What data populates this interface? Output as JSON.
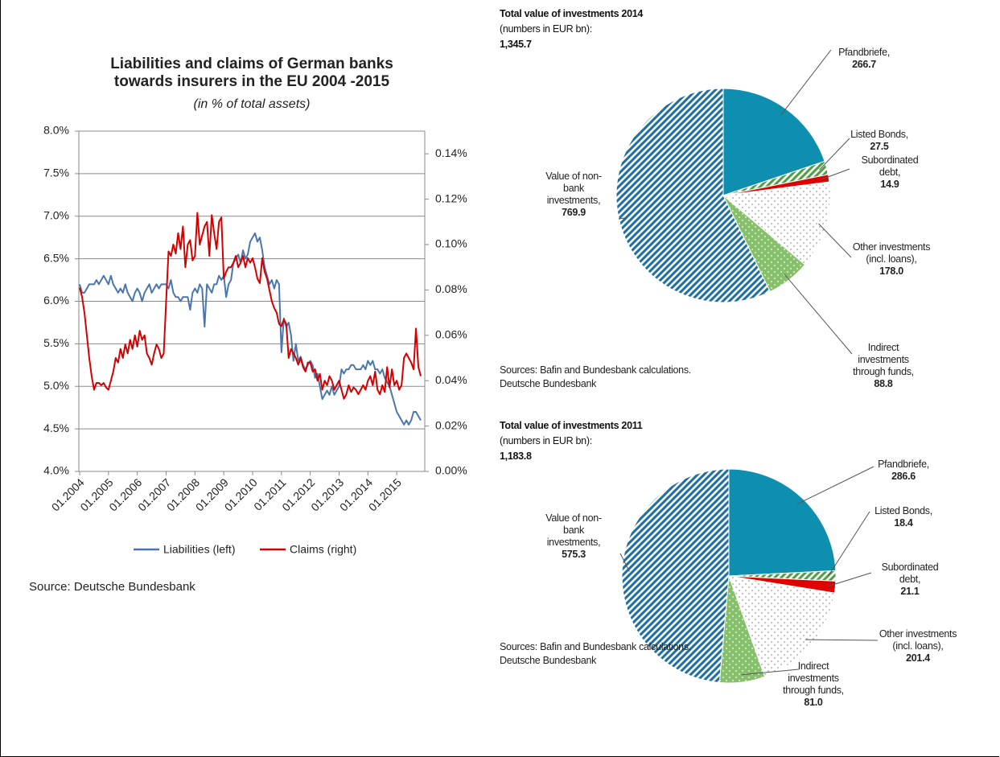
{
  "chart_data": [
    {
      "type": "line",
      "title": [
        "Liabilities and claims of German banks",
        "towards insurers in the EU 2004 -2015"
      ],
      "subtitle": "(in % of total assets)",
      "source": "Source: Deutsche Bundesbank",
      "categories": [
        "01.2004",
        null,
        null,
        null,
        null,
        null,
        null,
        null,
        null,
        null,
        null,
        null,
        "01.2005",
        null,
        null,
        null,
        null,
        null,
        null,
        null,
        null,
        null,
        null,
        null,
        "01.2006",
        null,
        null,
        null,
        null,
        null,
        null,
        null,
        null,
        null,
        null,
        null,
        "01.2007",
        null,
        null,
        null,
        null,
        null,
        null,
        null,
        null,
        null,
        null,
        null,
        "01.2008",
        null,
        null,
        null,
        null,
        null,
        null,
        null,
        null,
        null,
        null,
        null,
        "01.2009",
        null,
        null,
        null,
        null,
        null,
        null,
        null,
        null,
        null,
        null,
        null,
        "01.2010",
        null,
        null,
        null,
        null,
        null,
        null,
        null,
        null,
        null,
        null,
        null,
        "01.2011",
        null,
        null,
        null,
        null,
        null,
        null,
        null,
        null,
        null,
        null,
        null,
        "01.2012",
        null,
        null,
        null,
        null,
        null,
        null,
        null,
        null,
        null,
        null,
        null,
        "01.2013",
        null,
        null,
        null,
        null,
        null,
        null,
        null,
        null,
        null,
        null,
        null,
        "01.2014",
        null,
        null,
        null,
        null,
        null,
        null,
        null,
        null,
        null,
        null,
        null,
        "01.2015",
        null,
        null,
        null,
        null,
        null,
        null,
        null,
        null,
        null,
        null
      ],
      "series": [
        {
          "name": "Liabilities (left)",
          "color": "#4a76b0",
          "axis": "y",
          "values": [
            6.2,
            6.1,
            6.1,
            6.15,
            6.2,
            6.2,
            6.2,
            6.25,
            6.2,
            6.25,
            6.3,
            6.25,
            6.2,
            6.3,
            6.2,
            6.15,
            6.1,
            6.15,
            6.1,
            6.2,
            6.1,
            6.05,
            6.0,
            6.1,
            6.15,
            6.1,
            6.0,
            6.1,
            6.15,
            6.2,
            6.1,
            6.15,
            6.2,
            6.15,
            6.2,
            6.2,
            6.2,
            6.15,
            6.25,
            6.1,
            6.05,
            6.05,
            6.0,
            6.05,
            6.05,
            6.05,
            5.9,
            6.1,
            6.15,
            6.1,
            6.2,
            6.15,
            5.7,
            6.2,
            6.15,
            6.1,
            6.2,
            6.2,
            6.3,
            6.25,
            6.3,
            6.05,
            6.2,
            6.25,
            6.45,
            6.5,
            6.55,
            6.45,
            6.6,
            6.5,
            6.55,
            6.7,
            6.75,
            6.8,
            6.7,
            6.75,
            6.6,
            6.4,
            6.3,
            6.2,
            6.25,
            6.15,
            6.25,
            6.2,
            5.4,
            5.8,
            5.7,
            5.75,
            5.6,
            5.3,
            5.5,
            5.3,
            5.35,
            5.25,
            5.2,
            5.25,
            5.3,
            5.25,
            5.1,
            5.15,
            5.0,
            4.85,
            4.9,
            4.95,
            4.9,
            5.0,
            4.9,
            4.95,
            5.0,
            5.2,
            5.15,
            5.2,
            5.2,
            5.25,
            5.25,
            5.2,
            5.2,
            5.2,
            5.25,
            5.2,
            5.3,
            5.25,
            5.3,
            5.2,
            5.2,
            5.15,
            5.2,
            5.1,
            5.05,
            5.0,
            4.9,
            4.8,
            4.7,
            4.65,
            4.6,
            4.55,
            4.6,
            4.55,
            4.6,
            4.7,
            4.7,
            4.65,
            4.6
          ]
        },
        {
          "name": "Claims (right)",
          "color": "#d40000",
          "axis": "y2",
          "values": [
            0.081,
            0.077,
            0.07,
            0.06,
            0.05,
            0.042,
            0.036,
            0.039,
            0.039,
            0.038,
            0.039,
            0.037,
            0.036,
            0.04,
            0.044,
            0.05,
            0.048,
            0.054,
            0.05,
            0.056,
            0.052,
            0.058,
            0.054,
            0.06,
            0.055,
            0.062,
            0.058,
            0.06,
            0.052,
            0.05,
            0.047,
            0.052,
            0.056,
            0.054,
            0.05,
            0.052,
            0.075,
            0.097,
            0.095,
            0.1,
            0.096,
            0.105,
            0.098,
            0.108,
            0.09,
            0.1,
            0.102,
            0.093,
            0.095,
            0.114,
            0.1,
            0.104,
            0.108,
            0.11,
            0.095,
            0.113,
            0.105,
            0.098,
            0.11,
            0.112,
            0.085,
            0.088,
            0.09,
            0.09,
            0.092,
            0.095,
            0.09,
            0.092,
            0.095,
            0.09,
            0.094,
            0.092,
            0.094,
            0.09,
            0.085,
            0.083,
            0.094,
            0.088,
            0.085,
            0.08,
            0.075,
            0.072,
            0.07,
            0.065,
            0.064,
            0.067,
            0.065,
            0.05,
            0.054,
            0.052,
            0.05,
            0.047,
            0.05,
            0.046,
            0.044,
            0.048,
            0.048,
            0.044,
            0.045,
            0.04,
            0.043,
            0.036,
            0.04,
            0.038,
            0.042,
            0.04,
            0.036,
            0.038,
            0.04,
            0.036,
            0.032,
            0.034,
            0.038,
            0.035,
            0.037,
            0.036,
            0.034,
            0.036,
            0.038,
            0.036,
            0.04,
            0.042,
            0.038,
            0.044,
            0.036,
            0.034,
            0.038,
            0.035,
            0.046,
            0.037,
            0.045,
            0.038,
            0.04,
            0.036,
            0.038,
            0.05,
            0.052,
            0.05,
            0.048,
            0.045,
            0.063,
            0.046,
            0.042
          ]
        }
      ],
      "ylim": [
        4.0,
        8.0
      ],
      "yticks": [
        {
          "value": 4.0,
          "label": "4.0%"
        },
        {
          "value": 4.5,
          "label": "4.5%"
        },
        {
          "value": 5.0,
          "label": "5.0%"
        },
        {
          "value": 5.5,
          "label": "5.5%"
        },
        {
          "value": 6.0,
          "label": "6.0%"
        },
        {
          "value": 6.5,
          "label": "6.5%"
        },
        {
          "value": 7.0,
          "label": "7.0%"
        },
        {
          "value": 7.5,
          "label": "7.5%"
        },
        {
          "value": 8.0,
          "label": "8.0%"
        }
      ],
      "y2lim": [
        0,
        0.15
      ],
      "y2ticks": [
        {
          "value": 0,
          "label": "0.00%"
        },
        {
          "value": 0.02,
          "label": "0.02%"
        },
        {
          "value": 0.04,
          "label": "0.04%"
        },
        {
          "value": 0.06,
          "label": "0.06%"
        },
        {
          "value": 0.08,
          "label": "0.08%"
        },
        {
          "value": 0.1,
          "label": "0.10%"
        },
        {
          "value": 0.12,
          "label": "0.12%"
        },
        {
          "value": 0.14,
          "label": "0.14%"
        }
      ],
      "grid": true,
      "legend": "bottom"
    },
    {
      "type": "pie",
      "title": "Total value of investments 2014",
      "subtitle": "(numbers in EUR bn):",
      "total": "1,345.7",
      "labels": [
        "Pfandbriefe,",
        "Listed Bonds,",
        "Subordinated debt,",
        "Other investments (incl. loans),",
        "Indirect investments through funds,",
        "Value of non-bank investments,"
      ],
      "values": [
        266.7,
        27.5,
        14.9,
        178.0,
        88.8,
        769.9
      ],
      "value_labels": [
        "266.7",
        "27.5",
        "14.9",
        "178.0",
        "88.8",
        "769.9"
      ],
      "colors": [
        "#0e8fb0",
        "#4f9e45",
        "#e00000",
        "#9a9a9a",
        "#86c06a",
        "#1e6f9f"
      ],
      "patterns": [
        "solid",
        "stripes",
        "solid",
        "dots",
        "dots",
        "stripes"
      ],
      "notes": [
        "Sources: Bafin and Bundesbank calculations.",
        "Deutsche Bundesbank"
      ]
    },
    {
      "type": "pie",
      "title": "Total value of investments 2011",
      "subtitle": "(numbers in EUR bn):",
      "total": "1,183.8",
      "labels": [
        "Pfandbriefe,",
        "Listed Bonds,",
        "Subordinated debt,",
        "Other investments (incl. loans),",
        "Indirect investments through funds,",
        "Value of non-bank investments,"
      ],
      "values": [
        286.6,
        18.4,
        21.1,
        201.4,
        81.0,
        575.3
      ],
      "value_labels": [
        "286.6",
        "18.4",
        "21.1",
        "201.4",
        "81.0",
        "575.3"
      ],
      "colors": [
        "#0e8fb0",
        "#4f9e45",
        "#e00000",
        "#9a9a9a",
        "#86c06a",
        "#1e6f9f"
      ],
      "patterns": [
        "solid",
        "stripes",
        "solid",
        "dots",
        "dots",
        "stripes"
      ],
      "notes": [
        "Sources: Bafin and Bundesbank calculations.",
        "Deutsche Bundesbank"
      ]
    }
  ]
}
